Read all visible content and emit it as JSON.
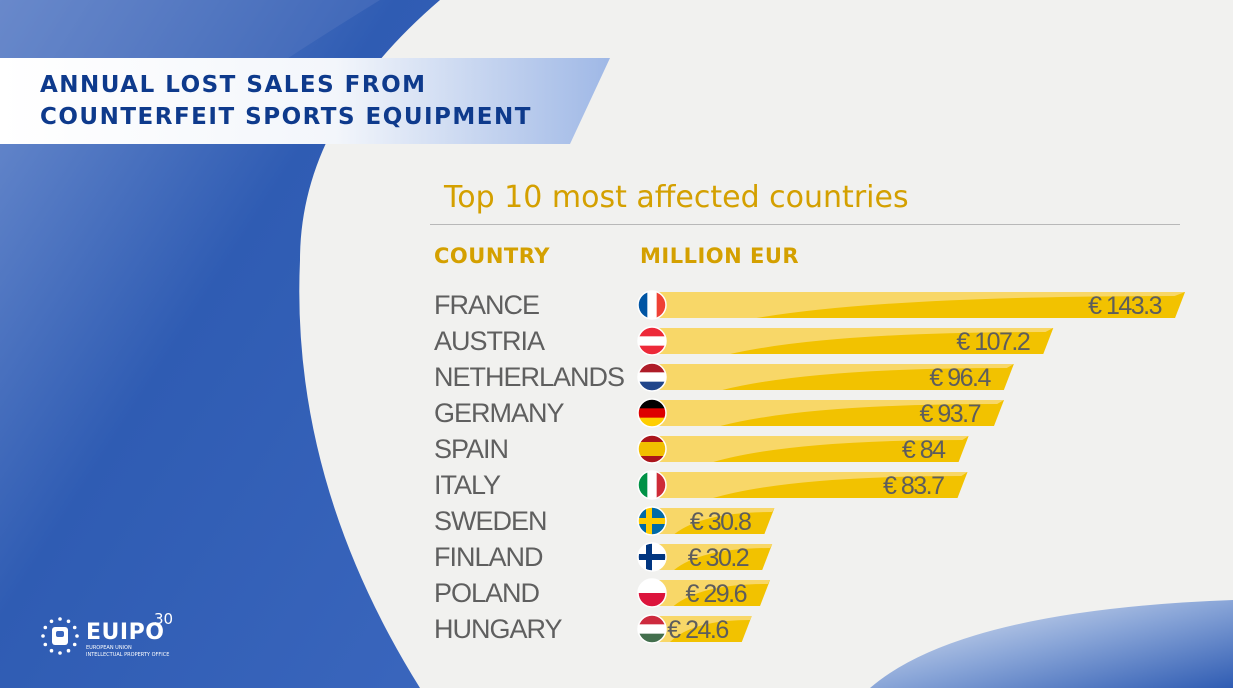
{
  "header": {
    "title_line1": "ANNUAL LOST SALES FROM",
    "title_line2": "COUNTERFEIT SPORTS EQUIPMENT"
  },
  "subtitle": "Top 10 most affected countries",
  "columns": {
    "country": "COUNTRY",
    "value": "MILLION EUR"
  },
  "logo": {
    "name": "EUIPO",
    "anniversary": "30",
    "line1": "EUROPEAN UNION",
    "line2": "INTELLECTUAL PROPERTY OFFICE"
  },
  "colors": {
    "brand_blue": "#0e3a8c",
    "gold": "#d4a000",
    "bar": "#f2c200",
    "bar_light": "#f9da7a"
  },
  "chart_data": {
    "type": "bar",
    "orientation": "horizontal",
    "title": "Top 10 most affected countries",
    "xlabel": "MILLION EUR",
    "ylabel": "COUNTRY",
    "unit_prefix": "€ ",
    "categories": [
      "FRANCE",
      "AUSTRIA",
      "NETHERLANDS",
      "GERMANY",
      "SPAIN",
      "ITALY",
      "SWEDEN",
      "FINLAND",
      "POLAND",
      "HUNGARY"
    ],
    "values": [
      143.3,
      107.2,
      96.4,
      93.7,
      84,
      83.7,
      30.8,
      30.2,
      29.6,
      24.6
    ],
    "value_labels": [
      "€ 143.3",
      "€ 107.2",
      "€ 96.4",
      "€ 93.7",
      "€ 84",
      "€ 83.7",
      "€ 30.8",
      "€ 30.2",
      "€ 29.6",
      "€ 24.6"
    ],
    "flags": [
      "france-flag-icon",
      "austria-flag-icon",
      "netherlands-flag-icon",
      "germany-flag-icon",
      "spain-flag-icon",
      "italy-flag-icon",
      "sweden-flag-icon",
      "finland-flag-icon",
      "poland-flag-icon",
      "hungary-flag-icon"
    ],
    "grid": false,
    "legend": "none"
  }
}
